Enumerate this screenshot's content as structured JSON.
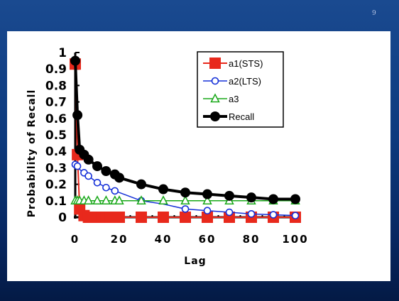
{
  "slide": {
    "number": "9"
  },
  "colors": {
    "a1": "#e8291c",
    "a2": "#1530d8",
    "a3": "#18a818",
    "recall": "#000000",
    "background": "#0d3a7e"
  },
  "chart_data": {
    "type": "line",
    "xlabel": "Lag",
    "ylabel": "Probability of Recall",
    "xlim": [
      0,
      100
    ],
    "ylim": [
      0,
      1
    ],
    "xticks": [
      0,
      20,
      40,
      60,
      80,
      100
    ],
    "yticks": [
      0,
      0.1,
      0.2,
      0.3,
      0.4,
      0.5,
      0.6,
      0.7,
      0.8,
      0.9,
      1
    ],
    "ytick_labels": [
      "0",
      "0.1",
      "0.2",
      "0.3",
      "0.4",
      "0.5",
      "0.6",
      "0.7",
      "0.8",
      "0.9",
      "1"
    ],
    "xtick_labels": [
      "0",
      "20",
      "40",
      "60",
      "80",
      "100"
    ],
    "grid": false,
    "legend": "top-right",
    "series": [
      {
        "name": "a1(STS)",
        "marker": "square",
        "x": [
          0,
          1,
          2,
          4,
          6,
          8,
          10,
          12,
          14,
          16,
          18,
          20,
          30,
          40,
          50,
          60,
          70,
          80,
          90,
          100
        ],
        "y": [
          0.93,
          0.38,
          0.05,
          0.01,
          0,
          0,
          0,
          0,
          0,
          0,
          0,
          0,
          0,
          0,
          0,
          0,
          0,
          0,
          0,
          0
        ]
      },
      {
        "name": "a2(LTS)",
        "marker": "circle-open",
        "x": [
          0,
          1,
          2,
          4,
          6,
          8,
          10,
          14,
          18,
          20,
          30,
          40,
          50,
          60,
          70,
          80,
          90,
          100
        ],
        "y": [
          0.32,
          0.31,
          0.29,
          0.27,
          0.25,
          0.23,
          0.21,
          0.18,
          0.16,
          0.15,
          0.1,
          0.08,
          0.05,
          0.04,
          0.03,
          0.02,
          0.015,
          0.01
        ],
        "marker_x": [
          0,
          1,
          4,
          6,
          10,
          14,
          18,
          30,
          50,
          60,
          70,
          80,
          90,
          100
        ]
      },
      {
        "name": "a3",
        "marker": "triangle-open",
        "x": [
          0,
          1,
          2,
          4,
          6,
          10,
          14,
          18,
          20,
          30,
          40,
          50,
          60,
          70,
          80,
          90,
          100
        ],
        "y": [
          0.1,
          0.1,
          0.1,
          0.1,
          0.1,
          0.1,
          0.1,
          0.1,
          0.1,
          0.1,
          0.1,
          0.1,
          0.1,
          0.1,
          0.1,
          0.1,
          0.1
        ]
      },
      {
        "name": "Recall",
        "marker": "circle-filled",
        "x": [
          0,
          1,
          2,
          4,
          6,
          10,
          14,
          18,
          20,
          30,
          40,
          50,
          60,
          70,
          80,
          90,
          100
        ],
        "y": [
          0.95,
          0.62,
          0.41,
          0.38,
          0.35,
          0.31,
          0.28,
          0.26,
          0.24,
          0.2,
          0.17,
          0.15,
          0.14,
          0.13,
          0.12,
          0.11,
          0.11
        ]
      }
    ]
  }
}
